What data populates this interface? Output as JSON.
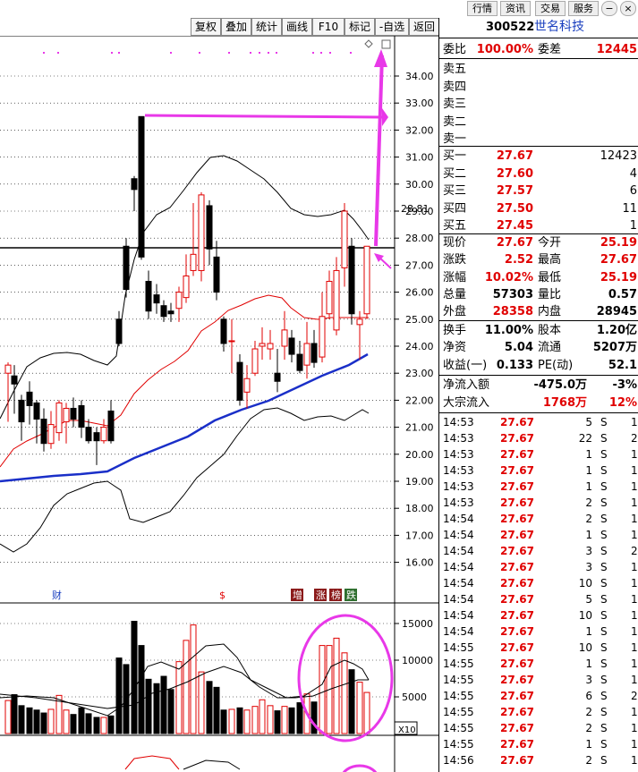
{
  "topbar": {
    "buttons": [
      "行情",
      "资讯",
      "交易",
      "服务"
    ]
  },
  "toolbar": {
    "buttons": [
      "复权",
      "叠加",
      "统计",
      "画线",
      "F10",
      "标记",
      "-自选",
      "返回"
    ]
  },
  "stock": {
    "code": "300522",
    "name": "世名科技"
  },
  "y_axis": {
    "price_ticks": [
      "34.00",
      "33.00",
      "32.00",
      "31.00",
      "30.00",
      "29.00",
      "28.00",
      "27.00",
      "26.00",
      "25.00",
      "24.00",
      "23.00",
      "22.00",
      "21.00",
      "20.00",
      "19.00",
      "18.00",
      "17.00",
      "16.00"
    ],
    "current_price_label": "28.81",
    "volume_ticks": [
      "15000",
      "10000",
      "5000"
    ],
    "vol_unit": "X10"
  },
  "markers": {
    "cai": "财",
    "s": "$",
    "zeng": "增",
    "zhang": "涨",
    "bang": "榜",
    "die": "跌"
  },
  "order_book": {
    "weibi_label": "委比",
    "weibi": "100.00%",
    "weicha_label": "委差",
    "weicha": "12445",
    "sells": [
      {
        "label": "卖五"
      },
      {
        "label": "卖四"
      },
      {
        "label": "卖三"
      },
      {
        "label": "卖二"
      },
      {
        "label": "卖一"
      }
    ],
    "buys": [
      {
        "label": "买一",
        "price": "27.67",
        "vol": "12423"
      },
      {
        "label": "买二",
        "price": "27.60",
        "vol": "4"
      },
      {
        "label": "买三",
        "price": "27.57",
        "vol": "6"
      },
      {
        "label": "买四",
        "price": "27.50",
        "vol": "11"
      },
      {
        "label": "买五",
        "price": "27.45",
        "vol": "1"
      }
    ]
  },
  "quote": [
    {
      "l1": "现价",
      "v1": "27.67",
      "c1": "red",
      "l2": "今开",
      "v2": "25.19",
      "c2": "red"
    },
    {
      "l1": "涨跌",
      "v1": "2.52",
      "c1": "red",
      "l2": "最高",
      "v2": "27.67",
      "c2": "red"
    },
    {
      "l1": "涨幅",
      "v1": "10.02%",
      "c1": "red",
      "l2": "最低",
      "v2": "25.19",
      "c2": "red"
    },
    {
      "l1": "总量",
      "v1": "57303",
      "c1": "blk",
      "l2": "量比",
      "v2": "0.57",
      "c2": "blk"
    },
    {
      "l1": "外盘",
      "v1": "28358",
      "c1": "red",
      "l2": "内盘",
      "v2": "28945",
      "c2": "blk"
    },
    {
      "l1": "换手",
      "v1": "11.00%",
      "c1": "blk",
      "l2": "股本",
      "v2": "1.20亿",
      "c2": "blk"
    },
    {
      "l1": "净资",
      "v1": "5.04",
      "c1": "blk",
      "l2": "流通",
      "v2": "5207万",
      "c2": "blk"
    },
    {
      "l1": "收益(一)",
      "v1": "0.133",
      "c1": "blk",
      "l2": "PE(动)",
      "v2": "52.1",
      "c2": "blk"
    }
  ],
  "flow": [
    {
      "label": "净流入额",
      "v1": "-475.0万",
      "v2": "-3%",
      "c": "blk"
    },
    {
      "label": "大宗流入",
      "v1": "1768万",
      "v2": "12%",
      "c": "red"
    }
  ],
  "ticks": [
    {
      "t": "14:53",
      "p": "27.67",
      "v": "5",
      "s": "S",
      "n": "1"
    },
    {
      "t": "14:53",
      "p": "27.67",
      "v": "22",
      "s": "S",
      "n": "2"
    },
    {
      "t": "14:53",
      "p": "27.67",
      "v": "1",
      "s": "S",
      "n": "1"
    },
    {
      "t": "14:53",
      "p": "27.67",
      "v": "1",
      "s": "S",
      "n": "1"
    },
    {
      "t": "14:53",
      "p": "27.67",
      "v": "1",
      "s": "S",
      "n": "1"
    },
    {
      "t": "14:53",
      "p": "27.67",
      "v": "2",
      "s": "S",
      "n": "1"
    },
    {
      "t": "14:54",
      "p": "27.67",
      "v": "2",
      "s": "S",
      "n": "1"
    },
    {
      "t": "14:54",
      "p": "27.67",
      "v": "1",
      "s": "S",
      "n": "1"
    },
    {
      "t": "14:54",
      "p": "27.67",
      "v": "3",
      "s": "S",
      "n": "2"
    },
    {
      "t": "14:54",
      "p": "27.67",
      "v": "3",
      "s": "S",
      "n": "1"
    },
    {
      "t": "14:54",
      "p": "27.67",
      "v": "10",
      "s": "S",
      "n": "1"
    },
    {
      "t": "14:54",
      "p": "27.67",
      "v": "5",
      "s": "S",
      "n": "1"
    },
    {
      "t": "14:54",
      "p": "27.67",
      "v": "10",
      "s": "S",
      "n": "1"
    },
    {
      "t": "14:54",
      "p": "27.67",
      "v": "1",
      "s": "S",
      "n": "1"
    },
    {
      "t": "14:55",
      "p": "27.67",
      "v": "10",
      "s": "S",
      "n": "1"
    },
    {
      "t": "14:55",
      "p": "27.67",
      "v": "1",
      "s": "S",
      "n": "1"
    },
    {
      "t": "14:55",
      "p": "27.67",
      "v": "3",
      "s": "S",
      "n": "1"
    },
    {
      "t": "14:55",
      "p": "27.67",
      "v": "6",
      "s": "S",
      "n": "2"
    },
    {
      "t": "14:55",
      "p": "27.67",
      "v": "2",
      "s": "S",
      "n": "1"
    },
    {
      "t": "14:55",
      "p": "27.67",
      "v": "2",
      "s": "S",
      "n": "1"
    },
    {
      "t": "14:55",
      "p": "27.67",
      "v": "1",
      "s": "S",
      "n": "1"
    },
    {
      "t": "14:56",
      "p": "27.67",
      "v": "2",
      "s": "S",
      "n": "1"
    }
  ],
  "colors": {
    "up": "#e00000",
    "down": "#000000",
    "ma_blue": "#1a2fc8",
    "annotation": "#e838e8"
  }
}
